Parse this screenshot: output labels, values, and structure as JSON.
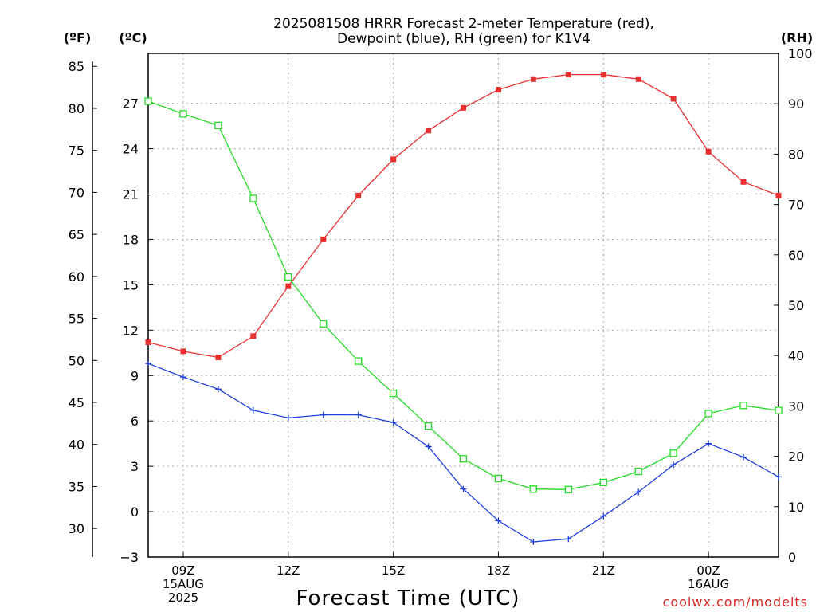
{
  "chart_data": {
    "type": "line",
    "title_line1": "2025081508 HRRR Forecast 2-meter Temperature (red),",
    "title_line2": "Dewpoint (blue), RH (green) for K1V4",
    "xlabel": "Forecast Time (UTC)",
    "credit": "coolwx.com/modelts",
    "credit_color": "#d62728",
    "left_outer_unit": "(ºF)",
    "left_inner_unit": "(ºC)",
    "right_unit": "(RH)",
    "x_hours": [
      8,
      9,
      10,
      11,
      12,
      13,
      14,
      15,
      16,
      17,
      18,
      19,
      20,
      21,
      22,
      23,
      24,
      25,
      26
    ],
    "x_ticks": [
      {
        "hour": 9,
        "lines": [
          "09Z",
          "15AUG",
          "2025"
        ]
      },
      {
        "hour": 12,
        "lines": [
          "12Z"
        ]
      },
      {
        "hour": 15,
        "lines": [
          "15Z"
        ]
      },
      {
        "hour": 18,
        "lines": [
          "18Z"
        ]
      },
      {
        "hour": 21,
        "lines": [
          "21Z"
        ]
      },
      {
        "hour": 24,
        "lines": [
          "00Z",
          "16AUG"
        ]
      }
    ],
    "x_range": [
      8,
      26
    ],
    "celsius_range": [
      -3,
      30.3
    ],
    "rh_range": [
      0,
      100
    ],
    "fahrenheit_ticks": [
      30,
      35,
      40,
      45,
      50,
      55,
      60,
      65,
      70,
      75,
      80,
      85
    ],
    "celsius_ticks": [
      -3,
      0,
      3,
      6,
      9,
      12,
      15,
      18,
      21,
      24,
      27
    ],
    "rh_ticks": [
      0,
      10,
      20,
      30,
      40,
      50,
      60,
      70,
      80,
      90,
      100
    ],
    "series": [
      {
        "key": "temperature",
        "unit": "C",
        "color": "#e83030",
        "marker": "filled-square",
        "values": [
          11.2,
          10.6,
          10.2,
          11.6,
          14.9,
          18.0,
          20.9,
          23.3,
          25.2,
          26.7,
          27.9,
          28.6,
          28.9,
          28.9,
          28.6,
          27.3,
          23.8,
          21.8,
          20.9
        ]
      },
      {
        "key": "dewpoint",
        "unit": "C",
        "color": "#2040e0",
        "marker": "plus",
        "values": [
          9.8,
          8.9,
          8.1,
          6.7,
          6.2,
          6.4,
          6.4,
          5.9,
          4.3,
          1.5,
          -0.6,
          -2.0,
          -1.8,
          -0.3,
          1.3,
          3.1,
          4.5,
          3.6,
          2.3
        ]
      },
      {
        "key": "relative_humidity",
        "unit": "%",
        "color": "#22dd22",
        "marker": "open-square",
        "values": [
          90.5,
          88.0,
          85.7,
          71.2,
          55.6,
          46.3,
          38.9,
          32.5,
          26.0,
          19.5,
          15.6,
          13.5,
          13.4,
          14.8,
          17.0,
          20.6,
          28.5,
          30.1,
          29.1
        ]
      }
    ],
    "grid": true
  }
}
